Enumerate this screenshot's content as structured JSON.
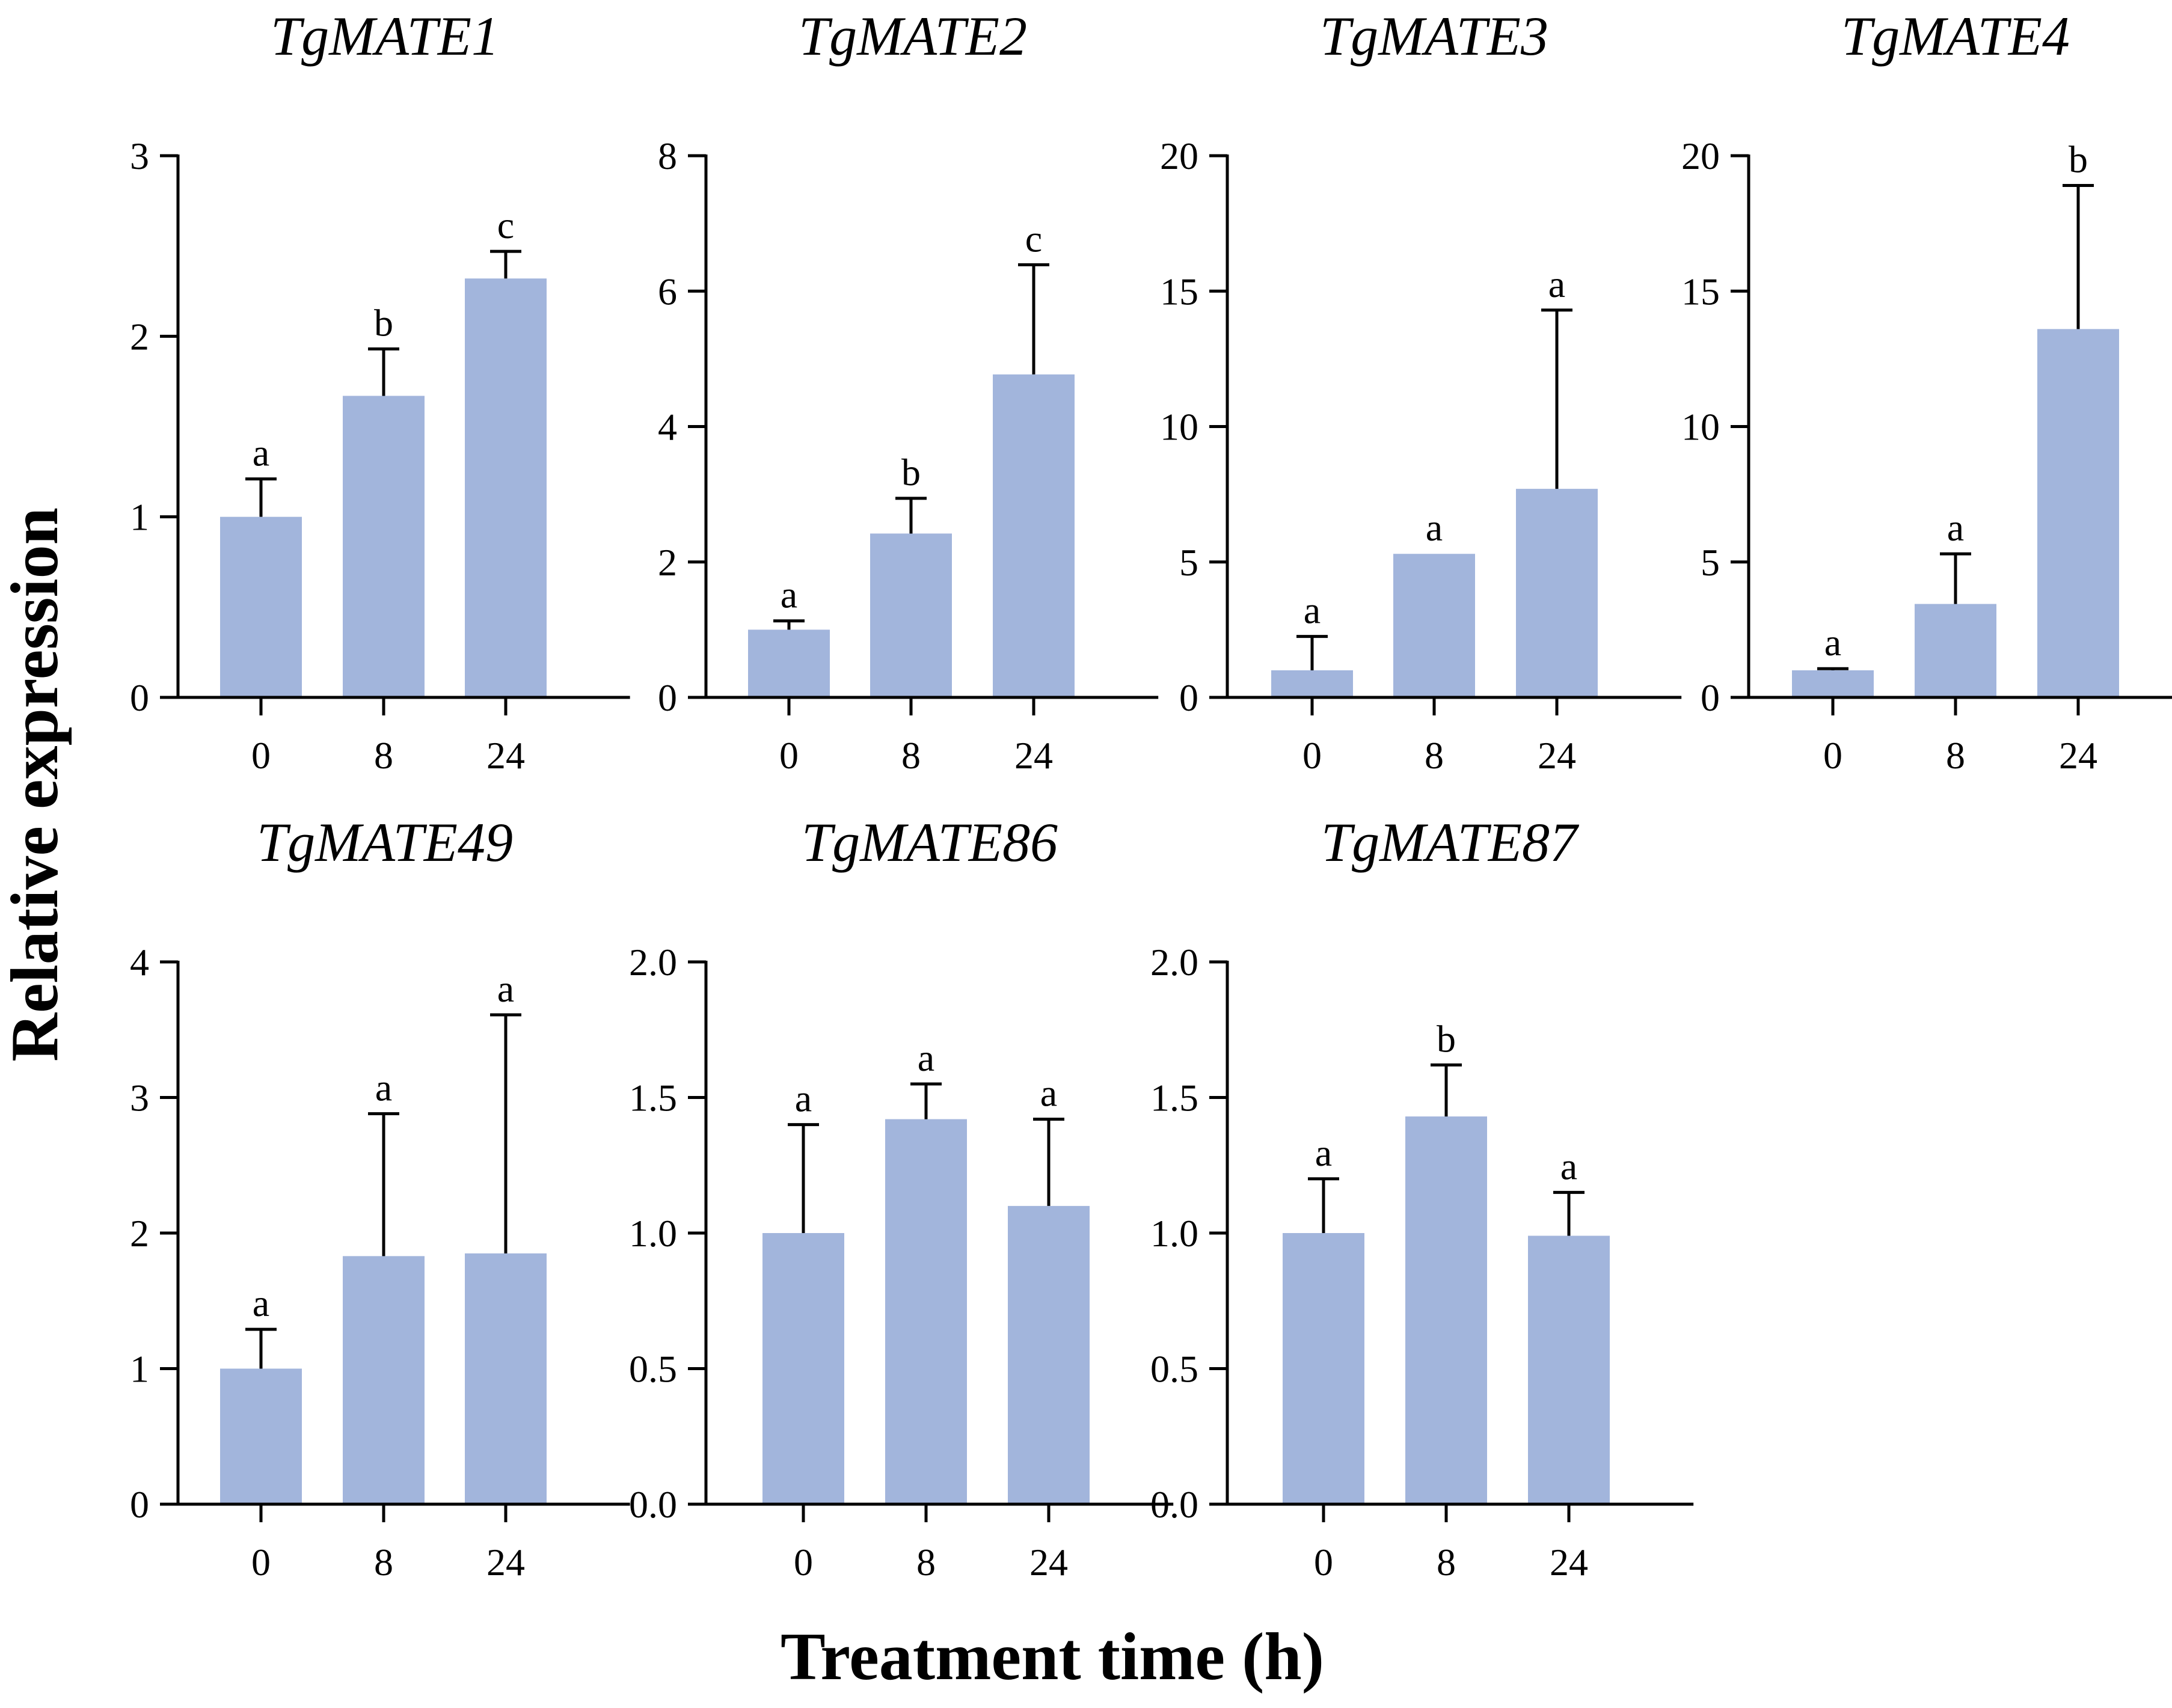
{
  "figure": {
    "ylabel": "Relative expression",
    "xlabel": "Treatment time (h)",
    "bar_color": "#a2b5dc",
    "axis_color": "#000000"
  },
  "chart_data": [
    {
      "type": "bar",
      "title": "TgMATE1",
      "categories": [
        "0",
        "8",
        "24"
      ],
      "values": [
        1.0,
        1.67,
        2.32
      ],
      "errors": [
        0.21,
        0.26,
        0.15
      ],
      "letters": [
        "a",
        "b",
        "c"
      ],
      "ylim": [
        0,
        3
      ],
      "yticks": [
        "0",
        "1",
        "2",
        "3"
      ],
      "ytick_values": [
        0,
        1,
        2,
        3
      ]
    },
    {
      "type": "bar",
      "title": "TgMATE2",
      "categories": [
        "0",
        "8",
        "24"
      ],
      "values": [
        1.0,
        2.42,
        4.77
      ],
      "errors": [
        0.13,
        0.52,
        1.62
      ],
      "letters": [
        "a",
        "b",
        "c"
      ],
      "ylim": [
        0,
        8
      ],
      "yticks": [
        "0",
        "2",
        "4",
        "6",
        "8"
      ],
      "ytick_values": [
        0,
        2,
        4,
        6,
        8
      ]
    },
    {
      "type": "bar",
      "title": "TgMATE3",
      "categories": [
        "0",
        "8",
        "24"
      ],
      "values": [
        1.0,
        5.3,
        7.7
      ],
      "errors": [
        1.25,
        0.0,
        6.6
      ],
      "letters": [
        "a",
        "a",
        "a"
      ],
      "ylim": [
        0,
        20
      ],
      "yticks": [
        "0",
        "5",
        "10",
        "15",
        "20"
      ],
      "ytick_values": [
        0,
        5,
        10,
        15,
        20
      ]
    },
    {
      "type": "bar",
      "title": "TgMATE4",
      "categories": [
        "0",
        "8",
        "24"
      ],
      "values": [
        1.0,
        3.45,
        13.6
      ],
      "errors": [
        0.06,
        1.85,
        5.3
      ],
      "letters": [
        "a",
        "a",
        "b"
      ],
      "ylim": [
        0,
        20
      ],
      "yticks": [
        "0",
        "5",
        "10",
        "15",
        "20"
      ],
      "ytick_values": [
        0,
        5,
        10,
        15,
        20
      ]
    },
    {
      "type": "bar",
      "title": "TgMATE49",
      "categories": [
        "0",
        "8",
        "24"
      ],
      "values": [
        1.0,
        1.83,
        1.85
      ],
      "errors": [
        0.29,
        1.05,
        1.76
      ],
      "letters": [
        "a",
        "a",
        "a"
      ],
      "ylim": [
        0,
        4
      ],
      "yticks": [
        "0",
        "1",
        "2",
        "3",
        "4"
      ],
      "ytick_values": [
        0,
        1,
        2,
        3,
        4
      ]
    },
    {
      "type": "bar",
      "title": "TgMATE86",
      "categories": [
        "0",
        "8",
        "24"
      ],
      "values": [
        1.0,
        1.42,
        1.1
      ],
      "errors": [
        0.4,
        0.13,
        0.32
      ],
      "letters": [
        "a",
        "a",
        "a"
      ],
      "ylim": [
        0,
        2
      ],
      "yticks": [
        "0.0",
        "0.5",
        "1.0",
        "1.5",
        "2.0"
      ],
      "ytick_values": [
        0,
        0.5,
        1.0,
        1.5,
        2.0
      ]
    },
    {
      "type": "bar",
      "title": "TgMATE87",
      "categories": [
        "0",
        "8",
        "24"
      ],
      "values": [
        1.0,
        1.43,
        0.99
      ],
      "errors": [
        0.2,
        0.19,
        0.16
      ],
      "letters": [
        "a",
        "b",
        "a"
      ],
      "ylim": [
        0,
        2
      ],
      "yticks": [
        "0.0",
        "0.5",
        "1.0",
        "1.5",
        "2.0"
      ],
      "ytick_values": [
        0,
        0.5,
        1.0,
        1.5,
        2.0
      ]
    }
  ]
}
